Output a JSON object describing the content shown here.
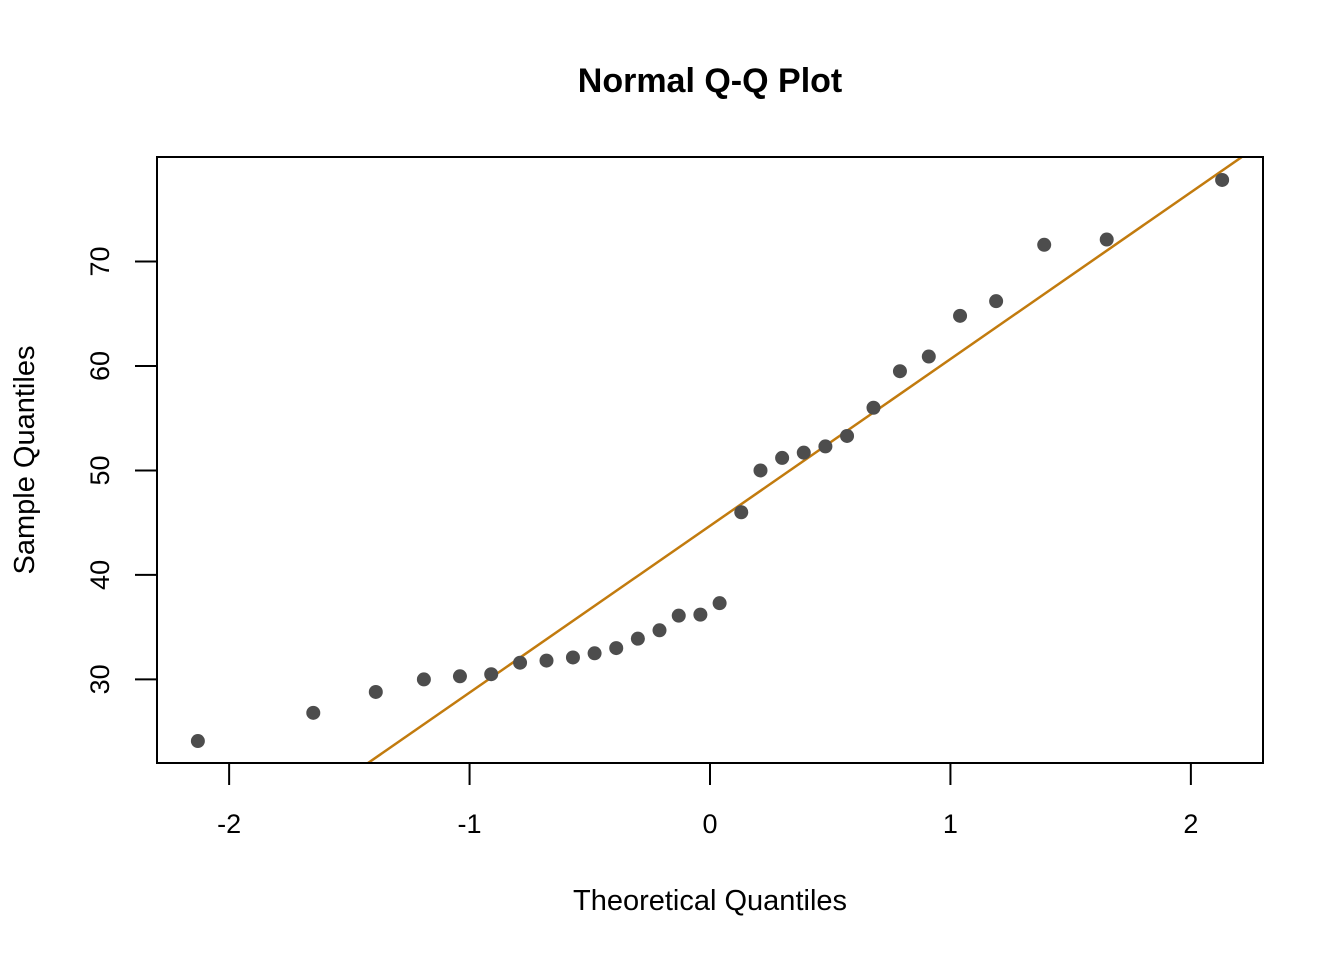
{
  "chart_data": {
    "type": "scatter",
    "title": "Normal Q-Q Plot",
    "xlabel": "Theoretical Quantiles",
    "ylabel": "Sample Quantiles",
    "xlim": [
      -2.3,
      2.3
    ],
    "ylim": [
      22,
      80
    ],
    "x_ticks": [
      -2,
      -1,
      0,
      1,
      2
    ],
    "x_tick_labels": [
      "-2",
      "-1",
      "0",
      "1",
      "2"
    ],
    "y_ticks": [
      30,
      40,
      50,
      60,
      70
    ],
    "y_tick_labels": [
      "30",
      "40",
      "50",
      "60",
      "70"
    ],
    "grid": false,
    "point_color": "#4d4d4d",
    "line_color": "#c27b0e",
    "reference_line": {
      "intercept": 44.7,
      "slope": 15.96
    },
    "points": [
      {
        "x": -2.13,
        "y": 24.1
      },
      {
        "x": -1.65,
        "y": 26.8
      },
      {
        "x": -1.39,
        "y": 28.8
      },
      {
        "x": -1.19,
        "y": 30.0
      },
      {
        "x": -1.04,
        "y": 30.3
      },
      {
        "x": -0.91,
        "y": 30.5
      },
      {
        "x": -0.79,
        "y": 31.6
      },
      {
        "x": -0.68,
        "y": 31.8
      },
      {
        "x": -0.57,
        "y": 32.1
      },
      {
        "x": -0.48,
        "y": 32.5
      },
      {
        "x": -0.39,
        "y": 33.0
      },
      {
        "x": -0.3,
        "y": 33.9
      },
      {
        "x": -0.21,
        "y": 34.7
      },
      {
        "x": -0.13,
        "y": 36.1
      },
      {
        "x": -0.04,
        "y": 36.2
      },
      {
        "x": 0.04,
        "y": 37.3
      },
      {
        "x": 0.13,
        "y": 46.0
      },
      {
        "x": 0.21,
        "y": 50.0
      },
      {
        "x": 0.3,
        "y": 51.2
      },
      {
        "x": 0.39,
        "y": 51.7
      },
      {
        "x": 0.48,
        "y": 52.3
      },
      {
        "x": 0.57,
        "y": 53.3
      },
      {
        "x": 0.68,
        "y": 56.0
      },
      {
        "x": 0.79,
        "y": 59.5
      },
      {
        "x": 0.91,
        "y": 60.9
      },
      {
        "x": 1.04,
        "y": 64.8
      },
      {
        "x": 1.19,
        "y": 66.2
      },
      {
        "x": 1.39,
        "y": 71.6
      },
      {
        "x": 1.65,
        "y": 72.1
      },
      {
        "x": 2.13,
        "y": 77.8
      }
    ]
  }
}
